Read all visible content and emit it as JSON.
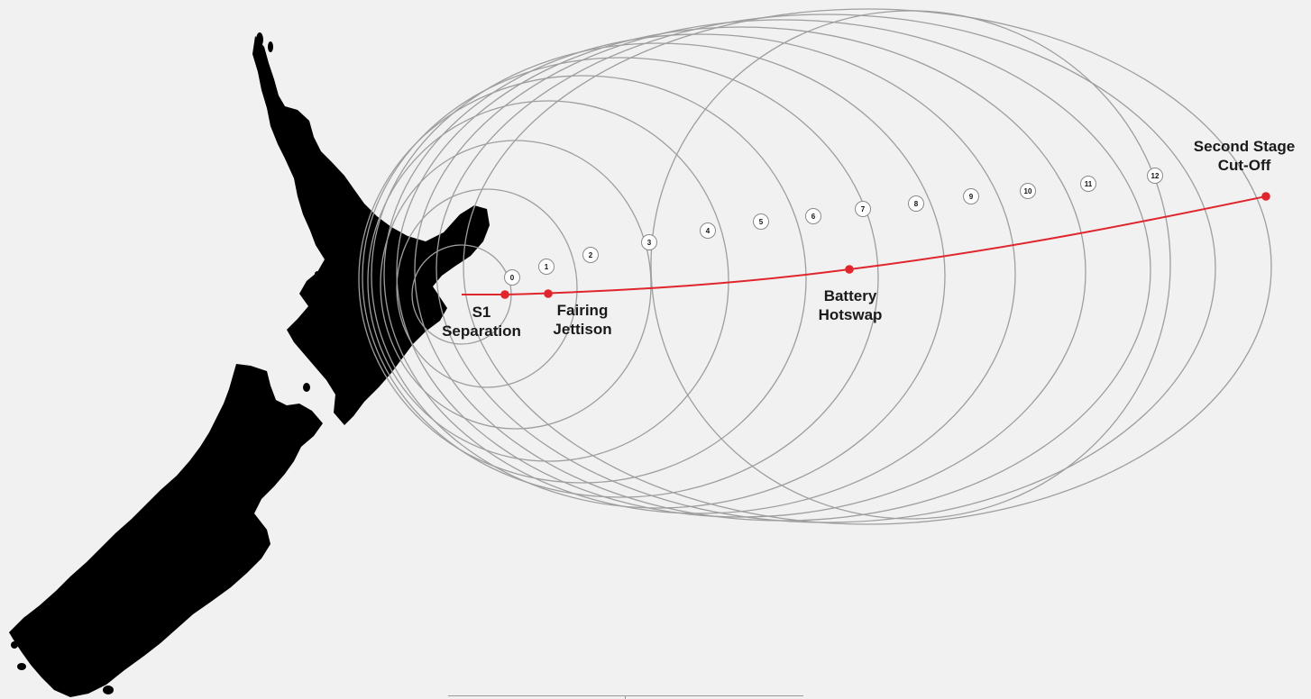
{
  "colors": {
    "background": "#f1f1f1",
    "land": "#000000",
    "range_ring": "#9e9e9e",
    "trajectory": "#e0252d",
    "event_dot": "#e0252d",
    "badge_fill": "#ffffff",
    "badge_stroke": "#8a8a8a",
    "label_text": "#1a1a1a"
  },
  "map": {
    "region_names": [
      "North Island",
      "South Island"
    ]
  },
  "range_rings": {
    "labels": [
      "0",
      "1",
      "2",
      "3",
      "4",
      "5",
      "6",
      "7",
      "8",
      "9",
      "10",
      "11",
      "12"
    ]
  },
  "events": [
    {
      "id": "s1-separation",
      "lines": [
        "S1",
        "Separation"
      ]
    },
    {
      "id": "fairing-jettison",
      "lines": [
        "Fairing",
        "Jettison"
      ]
    },
    {
      "id": "battery-hotswap",
      "lines": [
        "Battery",
        "Hotswap"
      ]
    },
    {
      "id": "second-stage-cut-off",
      "lines": [
        "Second Stage",
        "Cut-Off"
      ]
    }
  ]
}
